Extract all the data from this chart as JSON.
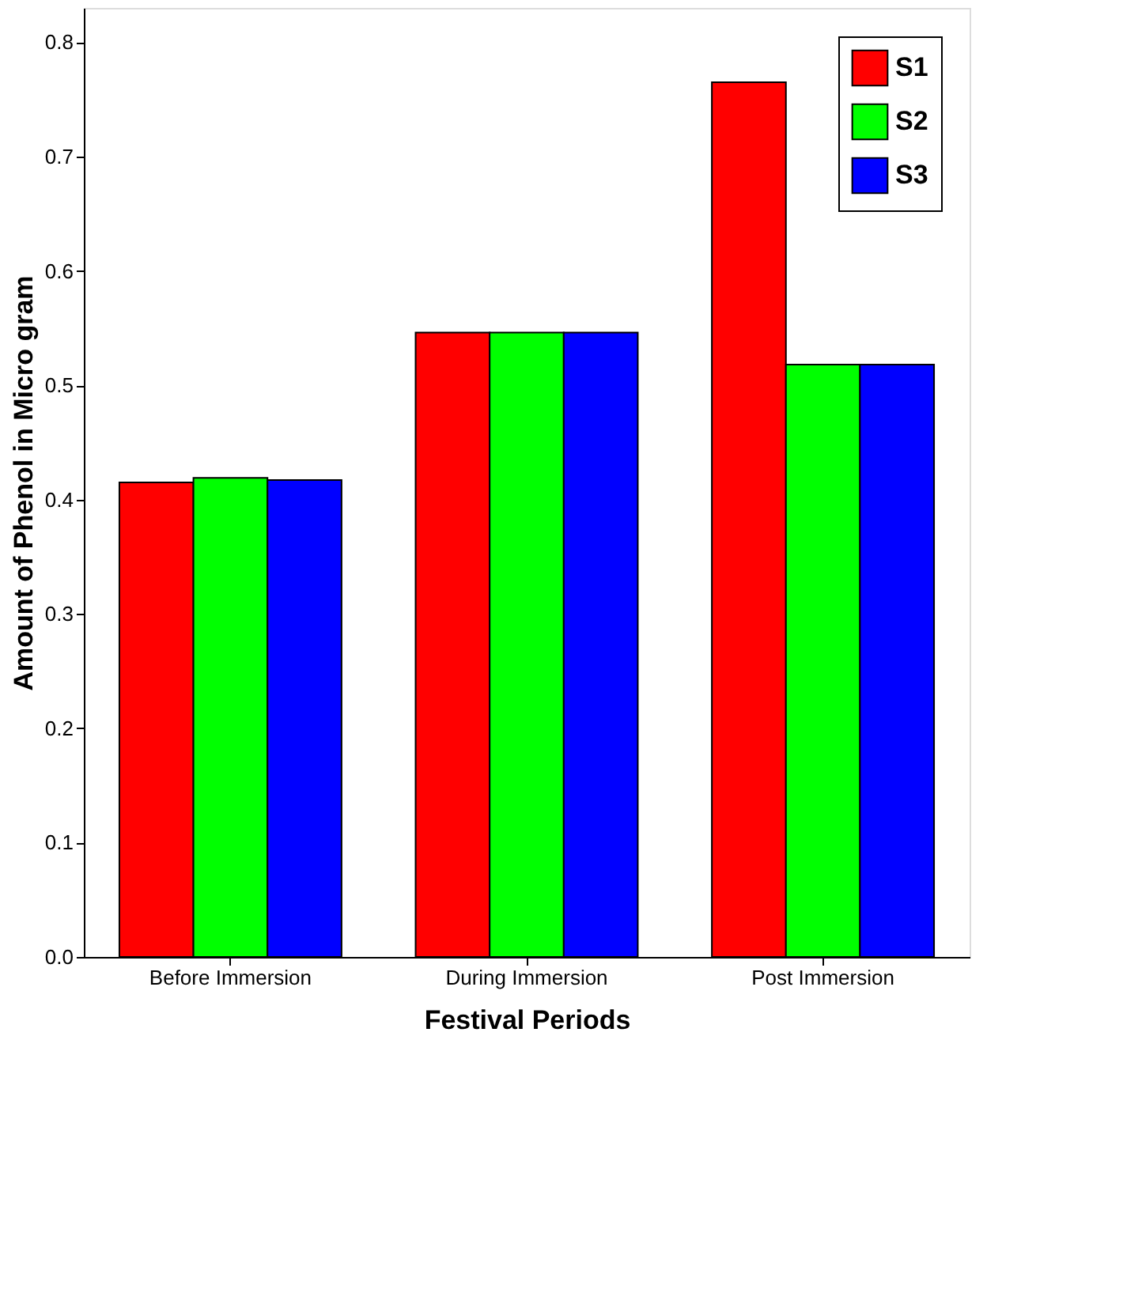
{
  "chart_data": {
    "type": "bar",
    "xlabel": "Festival Periods",
    "ylabel": "Amount of Phenol in Micro gram",
    "categories": [
      "Before Immersion",
      "During Immersion",
      "Post Immersion"
    ],
    "series": [
      {
        "name": "S1",
        "color": "#ff0000",
        "values": [
          0.415,
          0.546,
          0.765
        ]
      },
      {
        "name": "S2",
        "color": "#00ff00",
        "values": [
          0.419,
          0.546,
          0.518
        ]
      },
      {
        "name": "S3",
        "color": "#0000ff",
        "values": [
          0.417,
          0.546,
          0.518
        ]
      }
    ],
    "ylim": [
      0,
      0.83
    ],
    "yticks": [
      {
        "value": 0,
        "label": "0.0"
      },
      0.1,
      0.2,
      0.3,
      0.4,
      0.5,
      0.6,
      0.7,
      0.8
    ],
    "grid": false,
    "legend": "top right"
  }
}
